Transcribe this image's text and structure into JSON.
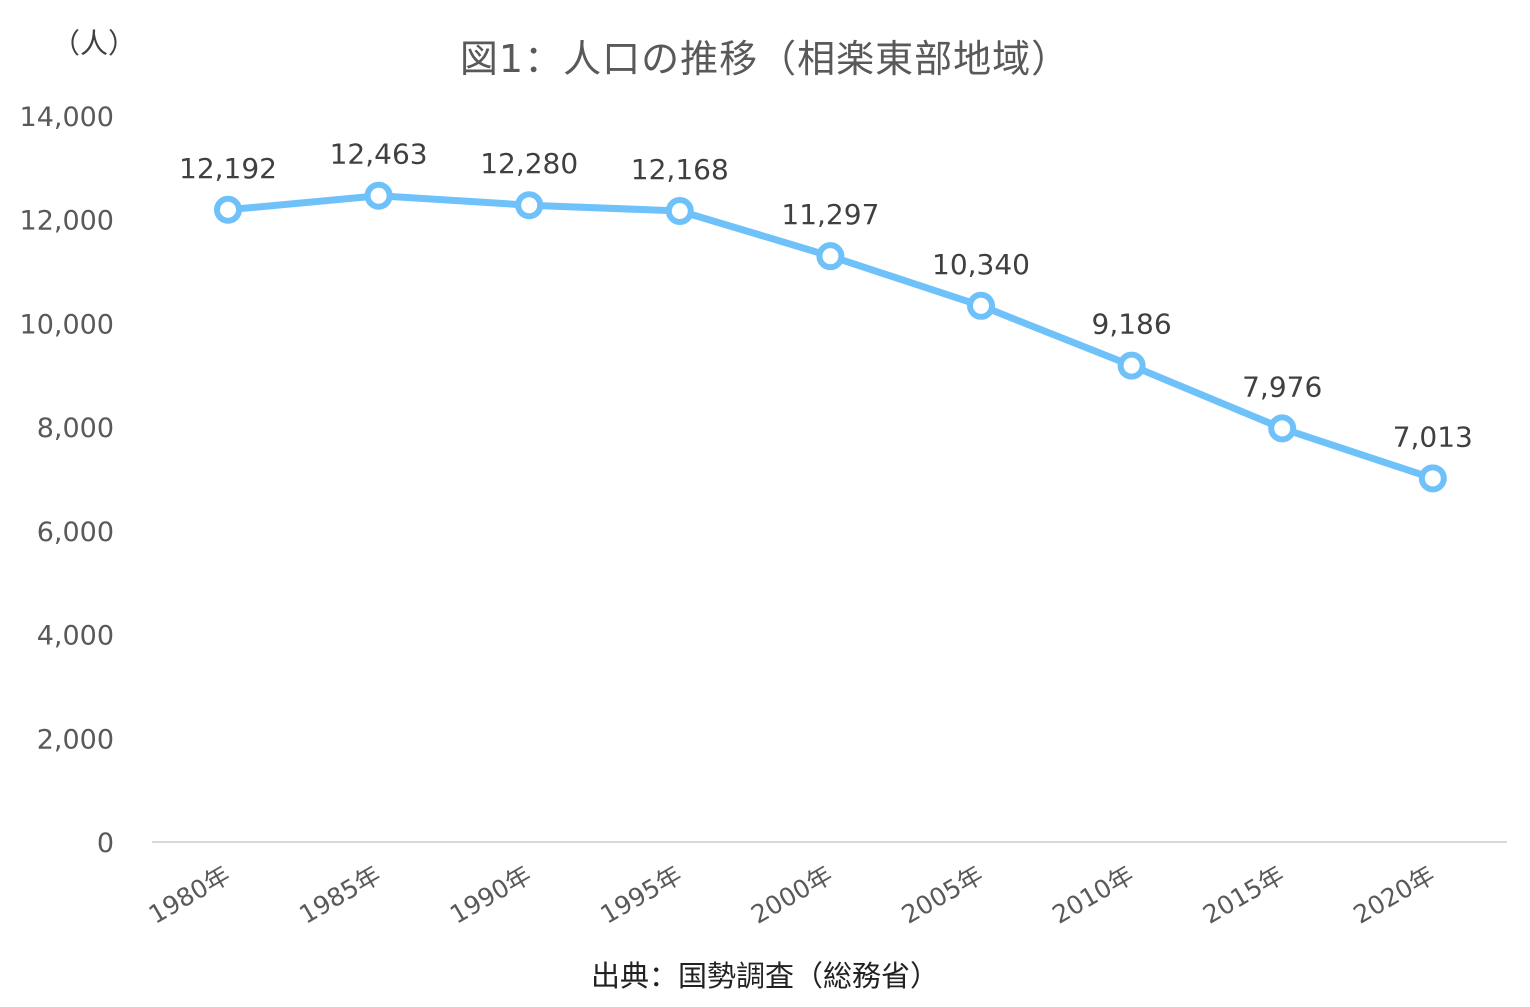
{
  "unit_label": "（人）",
  "source": "出典：国勢調査（総務省）",
  "colors": {
    "line": "#6EC1F9",
    "marker_fill": "#ffffff",
    "axis_text": "#595959",
    "data_label": "#404040",
    "baseline": "#d9d9d9"
  },
  "chart_data": {
    "type": "line",
    "title": "図1：人口の推移（相楽東部地域）",
    "xlabel": "",
    "ylabel": "（人）",
    "categories": [
      "1980年",
      "1985年",
      "1990年",
      "1995年",
      "2000年",
      "2005年",
      "2010年",
      "2015年",
      "2020年"
    ],
    "series": [
      {
        "values": [
          12192,
          12463,
          12280,
          12168,
          11297,
          10340,
          9186,
          7976,
          7013
        ]
      }
    ],
    "data_labels": [
      "12,192",
      "12,463",
      "12,280",
      "12,168",
      "11,297",
      "10,340",
      "9,186",
      "7,976",
      "7,013"
    ],
    "ylim": [
      0,
      14000
    ],
    "yticks": [
      0,
      2000,
      4000,
      6000,
      8000,
      10000,
      12000,
      14000
    ],
    "ytick_labels": [
      "0",
      "2,000",
      "4,000",
      "6,000",
      "8,000",
      "10,000",
      "12,000",
      "14,000"
    ],
    "grid": false,
    "legend": "none"
  }
}
